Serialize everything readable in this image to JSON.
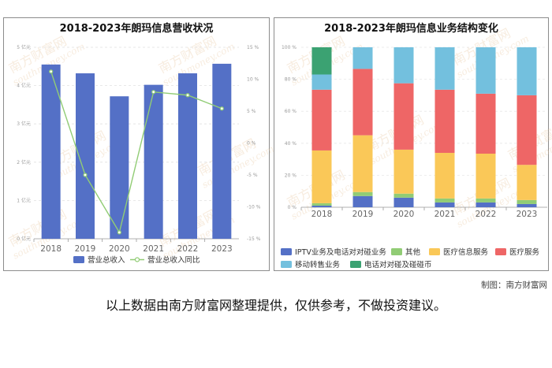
{
  "footer": {
    "source": "制图：南方财富网",
    "disclaimer": "以上数据由南方财富网整理提供，仅供参考，不做投资建议。"
  },
  "watermark": {
    "cn": "南方财富网",
    "en": "southmoney.com"
  },
  "colors": {
    "revenue_bar": "#5470c6",
    "yoy_line": "#91cc75",
    "iptv": "#5470c6",
    "other": "#91cc75",
    "medical_info": "#fac858",
    "medical_service": "#ee6666",
    "mobile_resale": "#73c0de",
    "telecom_match": "#3ba272"
  },
  "chart_data": [
    {
      "type": "bar",
      "title": "2018-2023年朗玛信息营收状况",
      "categories": [
        "2018",
        "2019",
        "2020",
        "2021",
        "2022",
        "2023"
      ],
      "series": [
        {
          "name": "营业总收入",
          "type": "bar",
          "axis": "left",
          "values": [
            4.55,
            4.32,
            3.72,
            4.02,
            4.32,
            4.57
          ]
        },
        {
          "name": "营业总收入同比",
          "type": "line",
          "axis": "right",
          "values": [
            11.2,
            -5.0,
            -14.0,
            8.0,
            7.5,
            5.4
          ]
        }
      ],
      "y_left": {
        "ylim": [
          0,
          5
        ],
        "ticks": [
          "0 亿元",
          "1 亿元",
          "2 亿元",
          "3 亿元",
          "4 亿元",
          "5 亿元"
        ]
      },
      "y_right": {
        "ylim": [
          -15,
          15
        ],
        "ticks": [
          "-15 %",
          "-10 %",
          "-5 %",
          "0 %",
          "5 %",
          "10 %",
          "15 %"
        ]
      },
      "grid": true,
      "legend": "bottom"
    },
    {
      "type": "bar",
      "stacked": true,
      "title": "2018-2023年朗玛信息业务结构变化",
      "categories": [
        "2018",
        "2019",
        "2020",
        "2021",
        "2022",
        "2023"
      ],
      "series": [
        {
          "name": "IPTV业务及电话对对碰业务",
          "values": [
            1,
            7,
            6,
            3,
            3,
            2
          ]
        },
        {
          "name": "其他",
          "values": [
            1.5,
            2.5,
            2.5,
            2.5,
            2.5,
            2.5
          ]
        },
        {
          "name": "医疗信息服务",
          "values": [
            33,
            35.5,
            27.5,
            28.5,
            28,
            22
          ]
        },
        {
          "name": "医疗服务",
          "values": [
            38,
            41.5,
            41.5,
            39.5,
            37.5,
            43.5
          ]
        },
        {
          "name": "移动转售业务",
          "values": [
            9.5,
            13.5,
            22.5,
            26.5,
            29,
            30
          ]
        },
        {
          "name": "电话对对碰及碰碰币",
          "values": [
            17,
            0,
            0,
            0,
            0,
            0
          ]
        }
      ],
      "ylim": [
        0,
        100
      ],
      "y_ticks": [
        "0 %",
        "20 %",
        "40 %",
        "60 %",
        "80 %",
        "100 %"
      ],
      "grid": true,
      "legend": "bottom"
    }
  ]
}
